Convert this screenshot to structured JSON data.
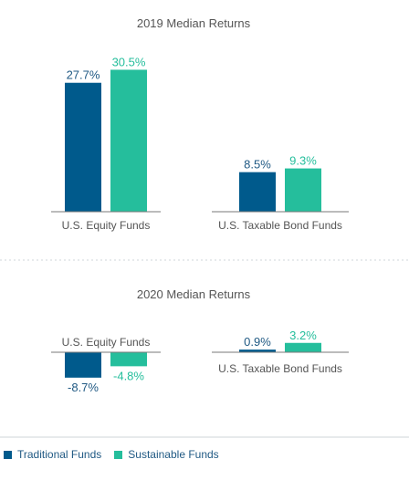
{
  "colors": {
    "traditional": "#005a8c",
    "sustainable": "#25be9c",
    "text": "#555555",
    "axis": "#7a7a7a",
    "divider": "#cfd5da"
  },
  "chart_data": [
    {
      "type": "bar",
      "title": "2019 Median Returns",
      "categories": [
        "U.S. Equity Funds",
        "U.S. Taxable Bond Funds"
      ],
      "series": [
        {
          "name": "Traditional Funds",
          "values": [
            27.7,
            8.5
          ],
          "labels": [
            "27.7%",
            "8.5%"
          ]
        },
        {
          "name": "Sustainable Funds",
          "values": [
            30.5,
            9.3
          ],
          "labels": [
            "30.5%",
            "9.3%"
          ]
        }
      ],
      "unit": "%",
      "grid": false,
      "legend": "bottom-left"
    },
    {
      "type": "bar",
      "title": "2020 Median Returns",
      "categories": [
        "U.S. Equity Funds",
        "U.S. Taxable Bond Funds"
      ],
      "series": [
        {
          "name": "Traditional Funds",
          "values": [
            -8.7,
            0.9
          ],
          "labels": [
            "-8.7%",
            "0.9%"
          ]
        },
        {
          "name": "Sustainable Funds",
          "values": [
            -4.8,
            3.2
          ],
          "labels": [
            "-4.8%",
            "3.2%"
          ]
        }
      ],
      "unit": "%",
      "grid": false,
      "legend": "bottom-left"
    }
  ],
  "legend": {
    "items": [
      {
        "label": "Traditional Funds",
        "color_key": "traditional"
      },
      {
        "label": "Sustainable Funds",
        "color_key": "sustainable"
      }
    ]
  }
}
